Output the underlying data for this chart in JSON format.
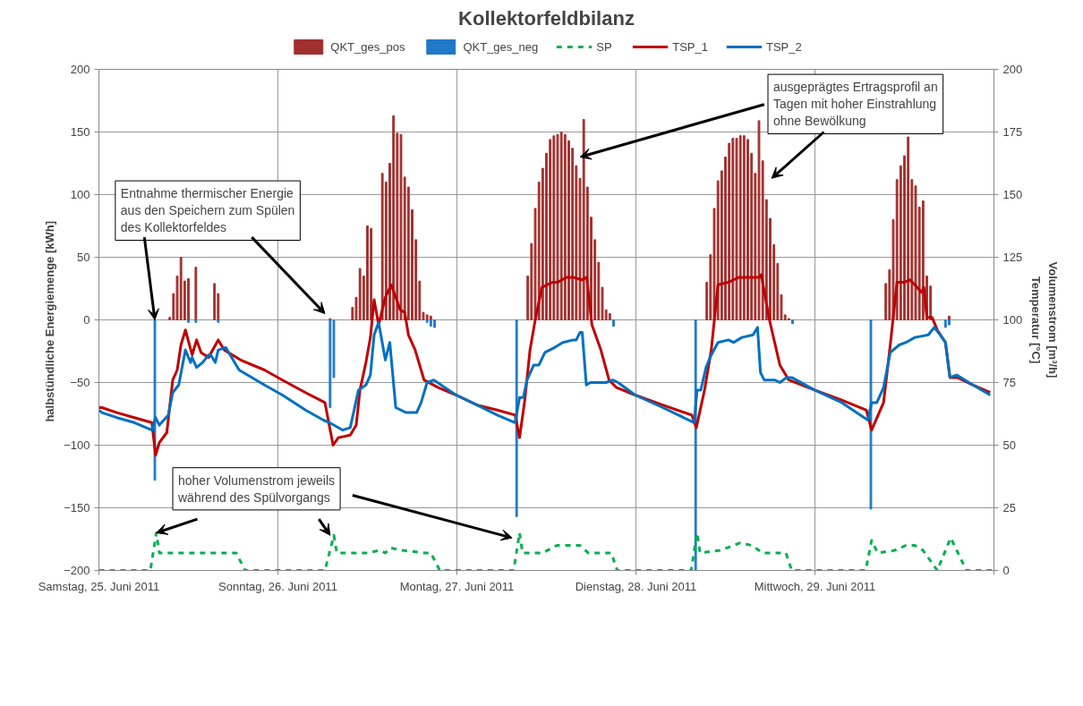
{
  "chart_data": {
    "type": "line",
    "title": "Kollektorfeldbilanz",
    "ylabel": "halbstündliche  Energiemenge [kWh]",
    "y2label": "Temperatur [°C]\nVolumenstrom [m³/h]",
    "xlim": [
      "2011-06-25T00:00",
      "2011-06-30T00:00"
    ],
    "xticks": [
      {
        "value": "2011-06-25",
        "label": "Samstag, 25. Juni 2011"
      },
      {
        "value": "2011-06-26",
        "label": "Sonntag, 26. Juni 2011"
      },
      {
        "value": "2011-06-27",
        "label": "Montag, 27. Juni 2011"
      },
      {
        "value": "2011-06-28",
        "label": "Dienstag, 28. Juni 2011"
      },
      {
        "value": "2011-06-29",
        "label": "Mittwoch, 29. Juni 2011"
      },
      {
        "value": "2011-06-30",
        "label": null
      }
    ],
    "ylim": [
      -200,
      200
    ],
    "yticks": [
      -200,
      -150,
      -100,
      -50,
      0,
      50,
      100,
      150,
      200
    ],
    "y2lim": [
      0,
      200
    ],
    "y2ticks": [
      0,
      25,
      50,
      75,
      100,
      125,
      150,
      175,
      200
    ],
    "grid": true,
    "legend": "top",
    "series": [
      {
        "name": "QKT_ges_pos",
        "type": "bar",
        "color": "#a0302e",
        "x": [
          "2011-06-25T09:30",
          "2011-06-25T10:00",
          "2011-06-25T10:30",
          "2011-06-25T11:00",
          "2011-06-25T11:30",
          "2011-06-25T12:00",
          "2011-06-25T13:00",
          "2011-06-25T15:30",
          "2011-06-25T16:00",
          "2011-06-26T07:00",
          "2011-06-26T10:00",
          "2011-06-26T10:30",
          "2011-06-26T11:00",
          "2011-06-26T11:30",
          "2011-06-26T12:00",
          "2011-06-26T12:30",
          "2011-06-26T14:00",
          "2011-06-26T14:30",
          "2011-06-26T15:00",
          "2011-06-26T15:30",
          "2011-06-26T16:00",
          "2011-06-26T16:30",
          "2011-06-26T17:00",
          "2011-06-26T17:30",
          "2011-06-26T18:00",
          "2011-06-26T18:30",
          "2011-06-26T19:00",
          "2011-06-26T19:30",
          "2011-06-26T20:00",
          "2011-06-26T20:30",
          "2011-06-27T09:30",
          "2011-06-27T10:00",
          "2011-06-27T10:30",
          "2011-06-27T11:00",
          "2011-06-27T11:30",
          "2011-06-27T12:00",
          "2011-06-27T12:30",
          "2011-06-27T13:00",
          "2011-06-27T13:30",
          "2011-06-27T14:00",
          "2011-06-27T14:30",
          "2011-06-27T15:00",
          "2011-06-27T15:30",
          "2011-06-27T16:00",
          "2011-06-27T16:30",
          "2011-06-27T17:00",
          "2011-06-27T17:30",
          "2011-06-27T18:00",
          "2011-06-27T18:30",
          "2011-06-27T19:00",
          "2011-06-27T19:30",
          "2011-06-27T20:00",
          "2011-06-27T20:30",
          "2011-06-28T09:30",
          "2011-06-28T10:00",
          "2011-06-28T10:30",
          "2011-06-28T11:00",
          "2011-06-28T11:30",
          "2011-06-28T12:00",
          "2011-06-28T12:30",
          "2011-06-28T13:00",
          "2011-06-28T13:30",
          "2011-06-28T14:00",
          "2011-06-28T14:30",
          "2011-06-28T15:00",
          "2011-06-28T15:30",
          "2011-06-28T16:00",
          "2011-06-28T16:30",
          "2011-06-28T17:00",
          "2011-06-28T17:30",
          "2011-06-28T18:00",
          "2011-06-28T18:30",
          "2011-06-28T19:00",
          "2011-06-28T19:30",
          "2011-06-28T20:00",
          "2011-06-28T20:30",
          "2011-06-29T09:30",
          "2011-06-29T10:00",
          "2011-06-29T10:30",
          "2011-06-29T11:00",
          "2011-06-29T11:30",
          "2011-06-29T12:00",
          "2011-06-29T12:30",
          "2011-06-29T13:00",
          "2011-06-29T13:30",
          "2011-06-29T14:00",
          "2011-06-29T14:30",
          "2011-06-29T15:00",
          "2011-06-29T15:30",
          "2011-06-29T18:00"
        ],
        "values": [
          2,
          21,
          35,
          50,
          31,
          33,
          42,
          29,
          21,
          1,
          10,
          18,
          41,
          35,
          75,
          73,
          117,
          110,
          125,
          163,
          149,
          148,
          114,
          106,
          88,
          64,
          31,
          6,
          4,
          3,
          35,
          61,
          89,
          110,
          121,
          133,
          144,
          147,
          148,
          150,
          148,
          143,
          137,
          123,
          113,
          160,
          106,
          82,
          64,
          46,
          26,
          8,
          5,
          30,
          52,
          89,
          111,
          119,
          130,
          141,
          145,
          145,
          147,
          147,
          144,
          133,
          117,
          159,
          127,
          96,
          81,
          60,
          45,
          20,
          4,
          1,
          29,
          40,
          80,
          112,
          123,
          131,
          146,
          112,
          107,
          90,
          95,
          35,
          27,
          3
        ]
      },
      {
        "name": "QKT_ges_neg",
        "type": "bar",
        "color": "#1f78c8",
        "x": [
          "2011-06-25T07:30",
          "2011-06-25T12:00",
          "2011-06-25T13:00",
          "2011-06-25T16:00",
          "2011-06-26T07:00",
          "2011-06-26T07:30",
          "2011-06-26T20:00",
          "2011-06-26T20:30",
          "2011-06-26T21:00",
          "2011-06-27T08:00",
          "2011-06-27T21:00",
          "2011-06-28T08:00",
          "2011-06-28T21:00",
          "2011-06-29T07:30",
          "2011-06-29T17:30",
          "2011-06-29T18:00"
        ],
        "values": [
          -128,
          -2,
          -2,
          -2,
          -70,
          -46,
          -2,
          -5,
          -6,
          -157,
          -5,
          -200,
          -3,
          -151,
          -6,
          -4
        ]
      },
      {
        "name": "SP",
        "axis": "y2",
        "color": "#00b050",
        "line_style": "dashed",
        "x": [
          "2011-06-25T00:00",
          "2011-06-25T06:54",
          "2011-06-25T07:42",
          "2011-06-25T08:06",
          "2011-06-25T18:24",
          "2011-06-25T19:36",
          "2011-06-26T06:18",
          "2011-06-26T07:30",
          "2011-06-26T07:54",
          "2011-06-26T12:06",
          "2011-06-26T13:36",
          "2011-06-26T14:24",
          "2011-06-26T15:06",
          "2011-06-26T16:42",
          "2011-06-26T19:42",
          "2011-06-26T20:30",
          "2011-06-26T21:42",
          "2011-06-27T07:36",
          "2011-06-27T08:24",
          "2011-06-27T08:48",
          "2011-06-27T11:30",
          "2011-06-27T13:24",
          "2011-06-27T14:54",
          "2011-06-27T16:30",
          "2011-06-27T17:36",
          "2011-06-27T20:42",
          "2011-06-27T21:30",
          "2011-06-28T07:24",
          "2011-06-28T08:12",
          "2011-06-28T08:36",
          "2011-06-28T11:18",
          "2011-06-28T14:00",
          "2011-06-28T15:30",
          "2011-06-28T17:00",
          "2011-06-28T20:06",
          "2011-06-28T20:54",
          "2011-06-29T06:48",
          "2011-06-29T07:36",
          "2011-06-29T08:24",
          "2011-06-29T10:42",
          "2011-06-29T12:12",
          "2011-06-29T13:24",
          "2011-06-29T14:30",
          "2011-06-29T16:24",
          "2011-06-29T18:12",
          "2011-06-29T19:30",
          "2011-06-29T20:18",
          "2011-06-29T23:42"
        ],
        "values": [
          0,
          0,
          15,
          7,
          7,
          0,
          0,
          14,
          7,
          7,
          8,
          7,
          9,
          8,
          7,
          7,
          0,
          0,
          15,
          7,
          7,
          10,
          10,
          10,
          7,
          7,
          0,
          0,
          15,
          7,
          8,
          11,
          10,
          7,
          7,
          0,
          0,
          12,
          7,
          8,
          10,
          10,
          8,
          0,
          13,
          5,
          0,
          0
        ]
      },
      {
        "name": "TSP_1",
        "axis": "y2",
        "color": "#c00000",
        "x": [
          "2011-06-25T00:00",
          "2011-06-25T00:24",
          "2011-06-25T02:24",
          "2011-06-25T04:45",
          "2011-06-25T07:06",
          "2011-06-25T07:36",
          "2011-06-25T08:06",
          "2011-06-25T09:06",
          "2011-06-25T09:54",
          "2011-06-25T10:30",
          "2011-06-25T11:00",
          "2011-06-25T11:36",
          "2011-06-25T12:30",
          "2011-06-25T13:06",
          "2011-06-25T13:42",
          "2011-06-25T14:42",
          "2011-06-25T16:00",
          "2011-06-25T16:48",
          "2011-06-25T19:00",
          "2011-06-25T22:12",
          "2011-06-26T00:36",
          "2011-06-26T03:42",
          "2011-06-26T06:18",
          "2011-06-26T07:24",
          "2011-06-26T08:06",
          "2011-06-26T09:42",
          "2011-06-26T10:30",
          "2011-06-26T11:00",
          "2011-06-26T11:48",
          "2011-06-26T12:24",
          "2011-06-26T12:54",
          "2011-06-26T13:30",
          "2011-06-26T14:24",
          "2011-06-26T15:12",
          "2011-06-26T16:24",
          "2011-06-26T17:00",
          "2011-06-26T17:30",
          "2011-06-26T18:24",
          "2011-06-26T19:36",
          "2011-06-26T21:30",
          "2011-06-26T23:54",
          "2011-06-27T02:42",
          "2011-06-27T05:24",
          "2011-06-27T07:48",
          "2011-06-27T08:24",
          "2011-06-27T09:06",
          "2011-06-27T09:48",
          "2011-06-27T10:30",
          "2011-06-27T11:24",
          "2011-06-27T12:48",
          "2011-06-27T13:30",
          "2011-06-27T14:42",
          "2011-06-27T15:36",
          "2011-06-27T16:45",
          "2011-06-27T17:24",
          "2011-06-27T18:06",
          "2011-06-27T19:18",
          "2011-06-27T20:24",
          "2011-06-27T21:24",
          "2011-06-27T23:54",
          "2011-06-28T03:36",
          "2011-06-28T07:30",
          "2011-06-28T08:06",
          "2011-06-28T09:12",
          "2011-06-28T10:06",
          "2011-06-28T11:00",
          "2011-06-28T12:24",
          "2011-06-28T13:48",
          "2011-06-28T14:42",
          "2011-06-28T16:36",
          "2011-06-28T16:48",
          "2011-06-28T17:54",
          "2011-06-28T19:18",
          "2011-06-28T20:30",
          "2011-06-28T23:57",
          "2011-06-29T03:36",
          "2011-06-29T06:54",
          "2011-06-29T07:36",
          "2011-06-29T09:12",
          "2011-06-29T10:06",
          "2011-06-29T11:00",
          "2011-06-29T12:00",
          "2011-06-29T12:42",
          "2011-06-29T13:24",
          "2011-06-29T14:18",
          "2011-06-29T14:36",
          "2011-06-29T15:00",
          "2011-06-29T15:42",
          "2011-06-29T16:24",
          "2011-06-29T17:30",
          "2011-06-29T18:06",
          "2011-06-29T19:06",
          "2011-06-29T21:12",
          "2011-06-29T23:30"
        ],
        "values": [
          65,
          65,
          63,
          61,
          59,
          46,
          51,
          55,
          76,
          80,
          90,
          96,
          86,
          92,
          87,
          85,
          92,
          88,
          84,
          80,
          76,
          71,
          67,
          50,
          53,
          54,
          58,
          72,
          83,
          93,
          108,
          98,
          109,
          114,
          104,
          103,
          94,
          88,
          76,
          73,
          70,
          66,
          64,
          62,
          53,
          68,
          88,
          100,
          113,
          115,
          115,
          117,
          117,
          116,
          117,
          98,
          88,
          76,
          73,
          70,
          66,
          62,
          57,
          72,
          88,
          114,
          115,
          117,
          117,
          117,
          118,
          100,
          82,
          76,
          72,
          68,
          64,
          56,
          67,
          90,
          115,
          115,
          116,
          114,
          111,
          113,
          101,
          101,
          96,
          91,
          77,
          77,
          74,
          71
        ]
      },
      {
        "name": "TSP_2",
        "axis": "y2",
        "color": "#0070c0",
        "x": [
          "2011-06-25T00:00",
          "2011-06-25T00:24",
          "2011-06-25T02:24",
          "2011-06-25T04:45",
          "2011-06-25T07:06",
          "2011-06-25T07:36",
          "2011-06-25T08:06",
          "2011-06-25T09:18",
          "2011-06-25T09:54",
          "2011-06-25T10:42",
          "2011-06-25T11:36",
          "2011-06-25T12:18",
          "2011-06-25T12:30",
          "2011-06-25T13:06",
          "2011-06-25T13:54",
          "2011-06-25T14:42",
          "2011-06-25T15:00",
          "2011-06-25T15:36",
          "2011-06-25T16:00",
          "2011-06-25T17:00",
          "2011-06-25T18:48",
          "2011-06-25T22:12",
          "2011-06-26T00:36",
          "2011-06-26T03:42",
          "2011-06-26T06:06",
          "2011-06-26T06:54",
          "2011-06-26T08:42",
          "2011-06-26T09:42",
          "2011-06-26T10:48",
          "2011-06-26T11:48",
          "2011-06-26T12:24",
          "2011-06-26T12:54",
          "2011-06-26T13:30",
          "2011-06-26T14:24",
          "2011-06-26T15:00",
          "2011-06-26T15:48",
          "2011-06-26T17:12",
          "2011-06-26T18:36",
          "2011-06-26T19:12",
          "2011-06-26T20:00",
          "2011-06-26T20:54",
          "2011-06-26T23:54",
          "2011-06-27T02:42",
          "2011-06-27T05:24",
          "2011-06-27T07:48",
          "2011-06-27T08:24",
          "2011-06-27T08:54",
          "2011-06-27T09:24",
          "2011-06-27T10:18",
          "2011-06-27T11:00",
          "2011-06-27T11:48",
          "2011-06-27T13:06",
          "2011-06-27T14:12",
          "2011-06-27T15:36",
          "2011-06-27T16:00",
          "2011-06-27T16:30",
          "2011-06-27T16:48",
          "2011-06-27T17:21",
          "2011-06-27T17:54",
          "2011-06-27T20:00",
          "2011-06-27T20:54",
          "2011-06-27T21:36",
          "2011-06-27T23:54",
          "2011-06-28T03:36",
          "2011-06-28T07:48",
          "2011-06-28T08:12",
          "2011-06-28T08:42",
          "2011-06-28T09:24",
          "2011-06-28T10:06",
          "2011-06-28T11:00",
          "2011-06-28T12:24",
          "2011-06-28T13:06",
          "2011-06-28T14:12",
          "2011-06-28T15:42",
          "2011-06-28T16:18",
          "2011-06-28T16:42",
          "2011-06-28T17:12",
          "2011-06-28T18:36",
          "2011-06-28T19:18",
          "2011-06-28T20:12",
          "2011-06-28T20:54",
          "2011-06-28T23:57",
          "2011-06-29T03:36",
          "2011-06-29T07:06",
          "2011-06-29T07:36",
          "2011-06-29T08:18",
          "2011-06-29T09:12",
          "2011-06-29T10:06",
          "2011-06-29T11:18",
          "2011-06-29T12:12",
          "2011-06-29T13:24",
          "2011-06-29T15:12",
          "2011-06-29T16:00",
          "2011-06-29T16:48",
          "2011-06-29T17:30",
          "2011-06-29T18:06",
          "2011-06-29T19:00",
          "2011-06-29T21:12",
          "2011-06-29T23:30"
        ],
        "values": [
          64,
          63,
          61,
          59,
          56,
          61,
          58,
          62,
          71,
          74,
          88,
          83,
          85,
          81,
          83,
          86,
          86,
          83,
          88,
          89,
          80,
          74,
          70,
          64,
          60,
          59,
          56,
          57,
          72,
          74,
          78,
          94,
          99,
          84,
          91,
          65,
          63,
          63,
          67,
          75,
          76,
          70,
          66,
          62,
          59,
          69,
          69,
          76,
          82,
          82,
          87,
          89,
          91,
          92,
          92,
          95,
          95,
          74,
          75,
          75,
          76,
          75,
          70,
          65,
          59,
          72,
          72,
          81,
          86,
          91,
          92,
          91,
          93,
          94,
          97,
          79,
          76,
          76,
          75,
          77,
          77,
          72,
          67,
          60,
          67,
          67,
          73,
          87,
          90,
          91,
          93,
          94,
          97,
          94,
          91,
          77,
          78,
          74,
          70
        ]
      }
    ],
    "annotations": [
      {
        "text": "Entnahme thermischer Energie aus den Speichern zum Spülen des Kollektorfeldes",
        "x": "2011-06-25T07:30",
        "y": 0
      },
      {
        "text": "ausgeprägtes Ertragsprofil an Tagen mit hoher Einstrahlung ohne Bewölkung",
        "x": "2011-06-27T16:30",
        "y": 130
      },
      {
        "text": "hoher Volumenstrom jeweils während des Spülvorgangs",
        "x": "2011-06-25T07:42",
        "y": -170
      }
    ]
  }
}
